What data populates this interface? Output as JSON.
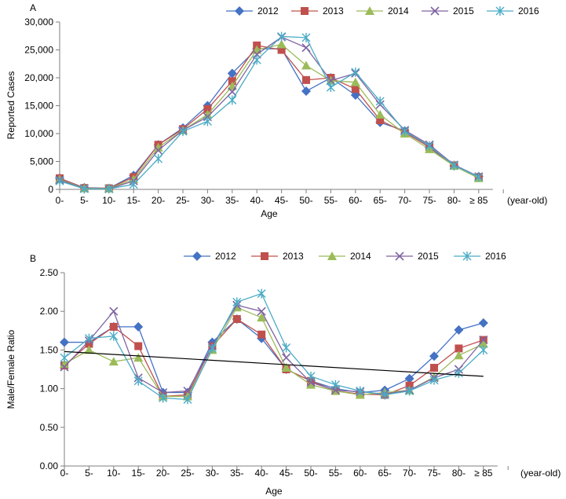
{
  "chart_data": [
    {
      "panel": "A",
      "type": "line",
      "xlabel": "Age",
      "ylabel": "Reported Cases",
      "x_unit": "(year-old)",
      "categories": [
        "0-",
        "5-",
        "10-",
        "15-",
        "20-",
        "25-",
        "30-",
        "35-",
        "40-",
        "45-",
        "50-",
        "55-",
        "60-",
        "65-",
        "70-",
        "75-",
        "80-",
        "≥ 85"
      ],
      "ylim": [
        0,
        30000
      ],
      "yticks": [
        0,
        5000,
        10000,
        15000,
        20000,
        25000,
        30000
      ],
      "ytick_labels": [
        "0",
        "5,000",
        "10,000",
        "15,000",
        "20,000",
        "25,000",
        "30,000"
      ],
      "legend_position": "top-right",
      "grid": false,
      "series": [
        {
          "name": "2012",
          "color": "#4472C4",
          "marker": "diamond",
          "values": [
            2000,
            300,
            200,
            2500,
            8000,
            11000,
            15000,
            20800,
            25200,
            25200,
            17600,
            20000,
            16900,
            12000,
            10500,
            7500,
            4200,
            2300
          ]
        },
        {
          "name": "2013",
          "color": "#C0504D",
          "marker": "square",
          "values": [
            2000,
            250,
            200,
            2200,
            8000,
            10800,
            14400,
            19400,
            25800,
            25000,
            19600,
            20000,
            18000,
            12400,
            10200,
            7600,
            4300,
            2200
          ]
        },
        {
          "name": "2014",
          "color": "#9BBB59",
          "marker": "triangle",
          "values": [
            1800,
            200,
            150,
            1800,
            7500,
            10600,
            13400,
            18500,
            25000,
            26000,
            22200,
            19500,
            19200,
            13400,
            10000,
            7200,
            4200,
            2000
          ]
        },
        {
          "name": "2015",
          "color": "#8064A2",
          "marker": "x",
          "values": [
            1700,
            150,
            100,
            1500,
            7000,
            10600,
            13000,
            17500,
            24200,
            27300,
            25400,
            19500,
            20800,
            15200,
            10600,
            8000,
            4400,
            2300
          ]
        },
        {
          "name": "2016",
          "color": "#4BACC6",
          "marker": "star",
          "values": [
            1500,
            100,
            100,
            900,
            5500,
            10400,
            12200,
            16000,
            23200,
            27400,
            27200,
            18300,
            21000,
            15800,
            10400,
            7800,
            4300,
            2200
          ]
        }
      ]
    },
    {
      "panel": "B",
      "type": "line",
      "xlabel": "Age",
      "ylabel": "Male/Female Ratio",
      "x_unit": "(year-old)",
      "categories": [
        "0-",
        "5-",
        "10-",
        "15-",
        "20-",
        "25-",
        "30-",
        "35-",
        "40-",
        "45-",
        "50-",
        "55-",
        "60-",
        "65-",
        "70-",
        "75-",
        "80-",
        "≥ 85"
      ],
      "ylim": [
        0,
        2.5
      ],
      "yticks": [
        0,
        0.5,
        1.0,
        1.5,
        2.0,
        2.5
      ],
      "ytick_labels": [
        "0.00",
        "0.50",
        "1.00",
        "1.50",
        "2.00",
        "2.50"
      ],
      "legend_position": "top",
      "grid": false,
      "trendline": {
        "start": 1.48,
        "end": 1.16,
        "color": "#000000"
      },
      "series": [
        {
          "name": "2012",
          "color": "#4472C4",
          "marker": "diamond",
          "values": [
            1.6,
            1.6,
            1.8,
            1.8,
            0.95,
            0.95,
            1.6,
            1.9,
            1.65,
            1.25,
            1.1,
            1.0,
            0.95,
            0.98,
            1.13,
            1.42,
            1.76,
            1.85
          ]
        },
        {
          "name": "2013",
          "color": "#C0504D",
          "marker": "square",
          "values": [
            1.3,
            1.58,
            1.8,
            1.55,
            0.9,
            0.92,
            1.55,
            1.9,
            1.7,
            1.25,
            1.1,
            0.97,
            0.93,
            0.92,
            1.04,
            1.27,
            1.52,
            1.63
          ]
        },
        {
          "name": "2014",
          "color": "#9BBB59",
          "marker": "triangle",
          "values": [
            1.32,
            1.5,
            1.35,
            1.4,
            0.9,
            0.9,
            1.5,
            2.05,
            1.92,
            1.27,
            1.05,
            0.97,
            0.92,
            0.95,
            0.98,
            1.15,
            1.43,
            1.58
          ]
        },
        {
          "name": "2015",
          "color": "#8064A2",
          "marker": "x",
          "values": [
            1.28,
            1.62,
            2.0,
            1.14,
            0.95,
            0.97,
            1.55,
            2.08,
            2.0,
            1.4,
            1.08,
            0.98,
            0.96,
            0.93,
            0.98,
            1.14,
            1.25,
            1.63
          ]
        },
        {
          "name": "2016",
          "color": "#4BACC6",
          "marker": "star",
          "values": [
            1.4,
            1.65,
            1.68,
            1.1,
            0.88,
            0.86,
            1.52,
            2.12,
            2.23,
            1.53,
            1.16,
            1.05,
            0.97,
            0.92,
            0.97,
            1.11,
            1.2,
            1.5
          ]
        }
      ]
    }
  ]
}
